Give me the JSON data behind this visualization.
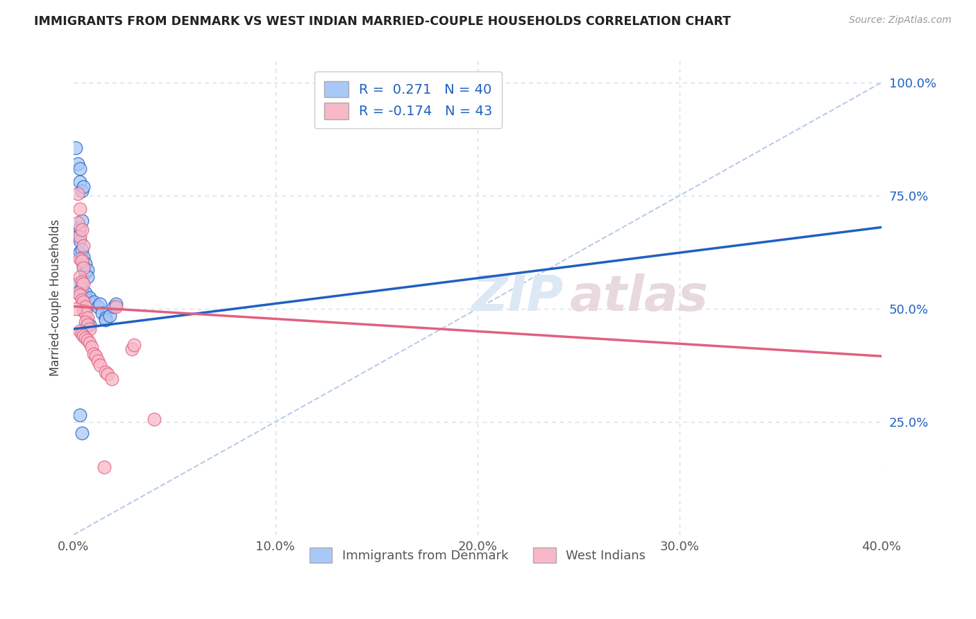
{
  "title": "IMMIGRANTS FROM DENMARK VS WEST INDIAN MARRIED-COUPLE HOUSEHOLDS CORRELATION CHART",
  "source": "Source: ZipAtlas.com",
  "ylabel": "Married-couple Households",
  "legend_label1": "Immigrants from Denmark",
  "legend_label2": "West Indians",
  "R1": "0.271",
  "N1": "40",
  "R2": "-0.174",
  "N2": "43",
  "blue_color": "#a8c8f8",
  "pink_color": "#f8b8c8",
  "blue_line_color": "#2060c0",
  "pink_line_color": "#e06080",
  "dashed_line_color": "#b8cce8",
  "grid_color": "#c8d8e8",
  "background_color": "#ffffff",
  "blue_line_x": [
    0.0,
    0.4
  ],
  "blue_line_y": [
    0.455,
    0.68
  ],
  "pink_line_x": [
    0.0,
    0.4
  ],
  "pink_line_y": [
    0.505,
    0.395
  ],
  "diag_line_x": [
    0.0,
    0.4
  ],
  "diag_line_y": [
    0.0,
    1.0
  ],
  "blue_scatter": [
    [
      0.001,
      0.855
    ],
    [
      0.002,
      0.82
    ],
    [
      0.003,
      0.81
    ],
    [
      0.003,
      0.78
    ],
    [
      0.004,
      0.76
    ],
    [
      0.005,
      0.77
    ],
    [
      0.003,
      0.68
    ],
    [
      0.004,
      0.695
    ],
    [
      0.002,
      0.66
    ],
    [
      0.003,
      0.65
    ],
    [
      0.003,
      0.625
    ],
    [
      0.004,
      0.63
    ],
    [
      0.004,
      0.61
    ],
    [
      0.005,
      0.615
    ],
    [
      0.005,
      0.595
    ],
    [
      0.006,
      0.6
    ],
    [
      0.006,
      0.58
    ],
    [
      0.007,
      0.585
    ],
    [
      0.007,
      0.57
    ],
    [
      0.002,
      0.555
    ],
    [
      0.003,
      0.54
    ],
    [
      0.004,
      0.545
    ],
    [
      0.005,
      0.53
    ],
    [
      0.006,
      0.535
    ],
    [
      0.007,
      0.52
    ],
    [
      0.008,
      0.525
    ],
    [
      0.009,
      0.51
    ],
    [
      0.01,
      0.515
    ],
    [
      0.012,
      0.505
    ],
    [
      0.013,
      0.51
    ],
    [
      0.014,
      0.49
    ],
    [
      0.016,
      0.48
    ],
    [
      0.016,
      0.475
    ],
    [
      0.018,
      0.485
    ],
    [
      0.02,
      0.505
    ],
    [
      0.021,
      0.51
    ],
    [
      0.003,
      0.265
    ],
    [
      0.004,
      0.225
    ],
    [
      0.007,
      0.47
    ],
    [
      0.008,
      0.465
    ]
  ],
  "pink_scatter": [
    [
      0.002,
      0.755
    ],
    [
      0.003,
      0.72
    ],
    [
      0.002,
      0.69
    ],
    [
      0.003,
      0.66
    ],
    [
      0.004,
      0.675
    ],
    [
      0.005,
      0.64
    ],
    [
      0.003,
      0.61
    ],
    [
      0.004,
      0.605
    ],
    [
      0.005,
      0.59
    ],
    [
      0.003,
      0.57
    ],
    [
      0.004,
      0.56
    ],
    [
      0.005,
      0.555
    ],
    [
      0.002,
      0.535
    ],
    [
      0.003,
      0.53
    ],
    [
      0.004,
      0.52
    ],
    [
      0.005,
      0.515
    ],
    [
      0.006,
      0.505
    ],
    [
      0.005,
      0.495
    ],
    [
      0.006,
      0.49
    ],
    [
      0.007,
      0.48
    ],
    [
      0.006,
      0.47
    ],
    [
      0.007,
      0.465
    ],
    [
      0.008,
      0.455
    ],
    [
      0.003,
      0.45
    ],
    [
      0.004,
      0.445
    ],
    [
      0.005,
      0.44
    ],
    [
      0.006,
      0.435
    ],
    [
      0.007,
      0.43
    ],
    [
      0.008,
      0.425
    ],
    [
      0.009,
      0.415
    ],
    [
      0.01,
      0.4
    ],
    [
      0.011,
      0.395
    ],
    [
      0.012,
      0.385
    ],
    [
      0.013,
      0.375
    ],
    [
      0.016,
      0.36
    ],
    [
      0.017,
      0.355
    ],
    [
      0.019,
      0.345
    ],
    [
      0.029,
      0.41
    ],
    [
      0.03,
      0.42
    ],
    [
      0.04,
      0.255
    ],
    [
      0.001,
      0.5
    ],
    [
      0.015,
      0.15
    ],
    [
      0.021,
      0.505
    ]
  ],
  "xlim": [
    0.0,
    0.4
  ],
  "ylim": [
    0.0,
    1.05
  ],
  "xticks": [
    0.0,
    0.1,
    0.2,
    0.3,
    0.4
  ],
  "xticklabels": [
    "0.0%",
    "10.0%",
    "20.0%",
    "30.0%",
    "40.0%"
  ],
  "yticks": [
    0.25,
    0.5,
    0.75,
    1.0
  ],
  "yticklabels": [
    "25.0%",
    "50.0%",
    "75.0%",
    "100.0%"
  ]
}
